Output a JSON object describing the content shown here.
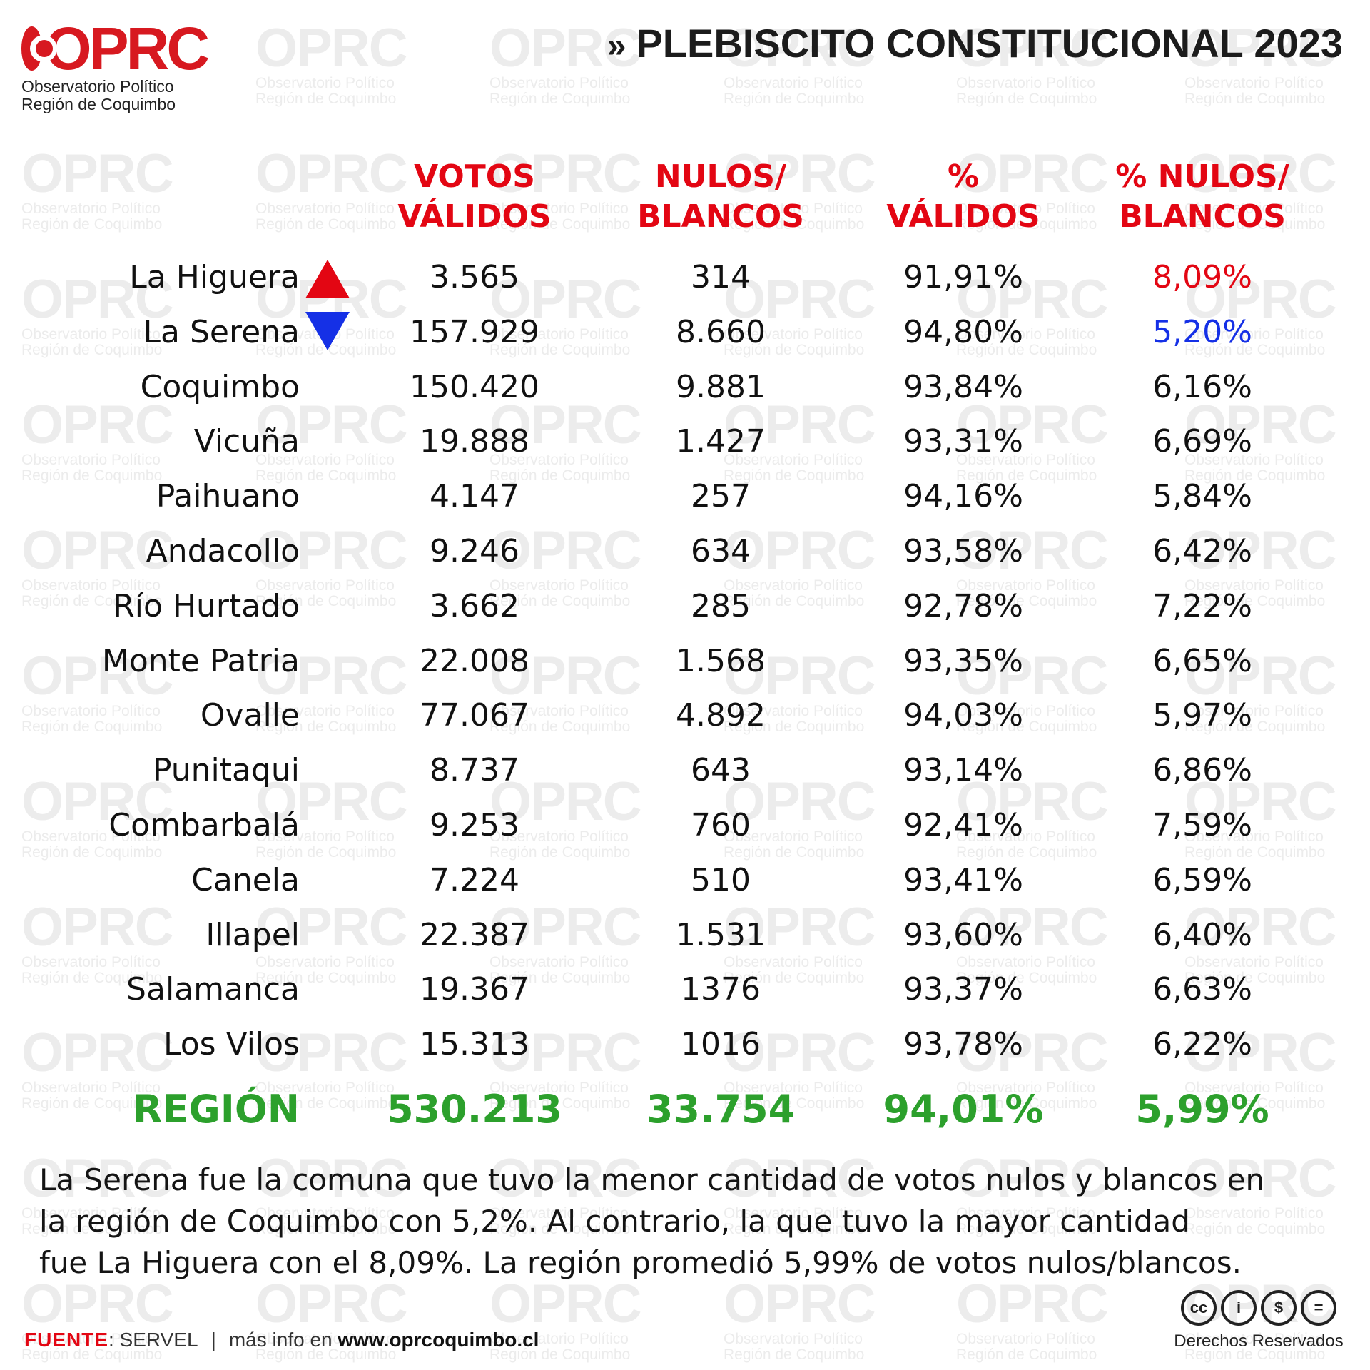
{
  "brand": {
    "logo_text": "OPRC",
    "subtitle_line1": "Observatorio Político",
    "subtitle_line2": "Región de Coquimbo",
    "accent_color": "#d71920"
  },
  "title": {
    "arrows": "»",
    "text": "PLEBISCITO CONSTITUCIONAL 2023"
  },
  "table": {
    "headers": [
      {
        "line1": "VOTOS",
        "line2": "VÁLIDOS"
      },
      {
        "line1": "NULOS/",
        "line2": "BLANCOS"
      },
      {
        "line1": "%",
        "line2": "VÁLIDOS"
      },
      {
        "line1": "% NULOS/",
        "line2": "BLANCOS"
      }
    ],
    "rows": [
      {
        "name": "La Higuera",
        "validos": "3.565",
        "nulos": "314",
        "pct_validos": "91,91%",
        "pct_nulos": "8,09%",
        "marker": "up-triangle"
      },
      {
        "name": "La Serena",
        "validos": "157.929",
        "nulos": "8.660",
        "pct_validos": "94,80%",
        "pct_nulos": "5,20%",
        "marker": "down-triangle"
      },
      {
        "name": "Coquimbo",
        "validos": "150.420",
        "nulos": "9.881",
        "pct_validos": "93,84%",
        "pct_nulos": "6,16%"
      },
      {
        "name": "Vicuña",
        "validos": "19.888",
        "nulos": "1.427",
        "pct_validos": "93,31%",
        "pct_nulos": "6,69%"
      },
      {
        "name": "Paihuano",
        "validos": "4.147",
        "nulos": "257",
        "pct_validos": "94,16%",
        "pct_nulos": "5,84%"
      },
      {
        "name": "Andacollo",
        "validos": "9.246",
        "nulos": "634",
        "pct_validos": "93,58%",
        "pct_nulos": "6,42%"
      },
      {
        "name": "Río Hurtado",
        "validos": "3.662",
        "nulos": "285",
        "pct_validos": "92,78%",
        "pct_nulos": "7,22%"
      },
      {
        "name": "Monte Patria",
        "validos": "22.008",
        "nulos": "1.568",
        "pct_validos": "93,35%",
        "pct_nulos": "6,65%"
      },
      {
        "name": "Ovalle",
        "validos": "77.067",
        "nulos": "4.892",
        "pct_validos": "94,03%",
        "pct_nulos": "5,97%"
      },
      {
        "name": "Punitaqui",
        "validos": "8.737",
        "nulos": "643",
        "pct_validos": "93,14%",
        "pct_nulos": "6,86%"
      },
      {
        "name": "Combarbalá",
        "validos": "9.253",
        "nulos": "760",
        "pct_validos": "92,41%",
        "pct_nulos": "7,59%"
      },
      {
        "name": "Canela",
        "validos": "7.224",
        "nulos": "510",
        "pct_validos": "93,41%",
        "pct_nulos": "6,59%"
      },
      {
        "name": "Illapel",
        "validos": "22.387",
        "nulos": "1.531",
        "pct_validos": "93,60%",
        "pct_nulos": "6,40%"
      },
      {
        "name": "Salamanca",
        "validos": "19.367",
        "nulos": "1376",
        "pct_validos": "93,37%",
        "pct_nulos": "6,63%"
      },
      {
        "name": "Los Vilos",
        "validos": "15.313",
        "nulos": "1016",
        "pct_validos": "93,78%",
        "pct_nulos": "6,22%"
      }
    ],
    "total": {
      "name": "REGIÓN",
      "validos": "530.213",
      "nulos": "33.754",
      "pct_validos": "94,01%",
      "pct_nulos": "5,99%"
    },
    "colors": {
      "header": "#e30613",
      "highest": "#e30613",
      "lowest": "#1530e6",
      "total": "#2ca02c"
    }
  },
  "note": {
    "line1": "La Serena fue la comuna que tuvo la menor cantidad de votos nulos y blancos en",
    "line2": "la región de Coquimbo con 5,2%. Al contrario, la que tuvo la mayor cantidad",
    "line3": "fue La Higuera con el 8,09%. La región promedió 5,99% de votos nulos/blancos."
  },
  "footer": {
    "source_key": "FUENTE",
    "source_value": ": SERVEL",
    "separator": "|",
    "more_info": "más info en ",
    "url": "www.oprcoquimbo.cl",
    "license_icons": [
      "cc-icon",
      "by-person-icon",
      "nc-dollar-icon",
      "nd-equals-icon"
    ],
    "license_glyphs": [
      "cc",
      "i",
      "$",
      "="
    ],
    "license_label": "Derechos Reservados"
  }
}
